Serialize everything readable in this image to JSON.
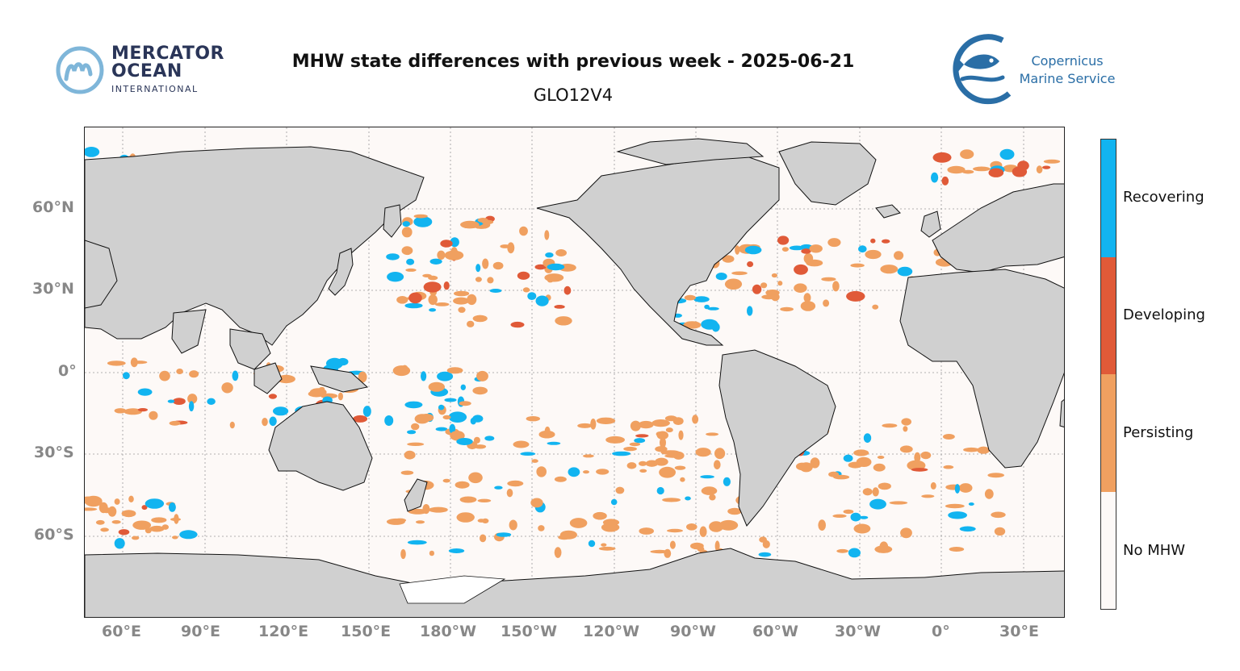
{
  "header": {
    "title": "MHW state differences with previous week - 2025-06-21",
    "subtitle": "GLO12V4"
  },
  "logos": {
    "mercator": {
      "line1": "MERCATOR",
      "line2": "OCEAN",
      "line3": "INTERNATIONAL",
      "color": "#2a3558",
      "accent": "#7fb6d9"
    },
    "copernicus": {
      "line1": "Copernicus",
      "line2": "Marine Service",
      "color": "#2a6ea6"
    }
  },
  "map": {
    "projection": "plate-carree",
    "central_longitude": "-160",
    "land_color": "#d0d0d0",
    "ocean_color": "#fdf9f7",
    "lat_ticks": [
      "60°N",
      "30°N",
      "0°",
      "30°S",
      "60°S"
    ],
    "lon_ticks": [
      "60°E",
      "90°E",
      "120°E",
      "150°E",
      "180°W",
      "150°W",
      "120°W",
      "90°W",
      "60°W",
      "30°W",
      "0°",
      "30°E"
    ],
    "gridlines": true
  },
  "legend": {
    "categories": [
      {
        "label": "Recovering",
        "color": "#12b4f0"
      },
      {
        "label": "Developing",
        "color": "#e05a38"
      },
      {
        "label": "Persisting",
        "color": "#f0a060"
      },
      {
        "label": "No MHW",
        "color": "#fdf9f7"
      }
    ]
  }
}
